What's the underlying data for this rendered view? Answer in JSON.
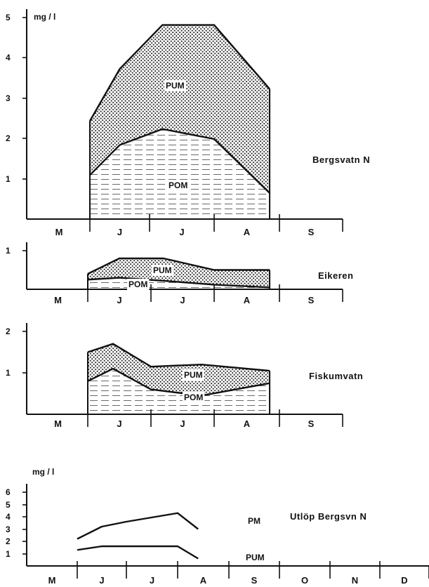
{
  "chart_data": [
    {
      "type": "area",
      "title": "Bergsvatn N",
      "ylabel": "mg / l",
      "ylim": [
        0,
        5
      ],
      "yticks": [
        "1",
        "2",
        "3",
        "4",
        "5"
      ],
      "categories": [
        "M",
        "J",
        "J",
        "A",
        "S"
      ],
      "x": [
        1.0,
        1.5,
        2.2,
        3.0,
        3.85
      ],
      "series": [
        {
          "name": "PUM",
          "values": [
            1.1,
            1.85,
            2.25,
            2.0,
            0.65
          ],
          "fill": "hatch"
        },
        {
          "name": "POM",
          "values": [
            2.45,
            3.75,
            4.85,
            4.85,
            3.25
          ],
          "fill": "dots"
        }
      ],
      "grid": false
    },
    {
      "type": "area",
      "title": "Eikeren",
      "ylabel": "",
      "ylim": [
        0,
        1.2
      ],
      "yticks": [
        "1"
      ],
      "categories": [
        "M",
        "J",
        "J",
        "A",
        "S"
      ],
      "x": [
        1.0,
        1.5,
        2.2,
        3.0,
        3.85
      ],
      "series": [
        {
          "name": "PUM",
          "values": [
            0.25,
            0.3,
            0.22,
            0.12,
            0.05
          ],
          "fill": "hatch"
        },
        {
          "name": "POM",
          "values": [
            0.4,
            0.8,
            0.8,
            0.5,
            0.5
          ],
          "fill": "dots"
        }
      ],
      "grid": false
    },
    {
      "type": "area",
      "title": "Fiskumvatn",
      "ylabel": "",
      "ylim": [
        0,
        2.2
      ],
      "yticks": [
        "1",
        "2"
      ],
      "categories": [
        "M",
        "J",
        "J",
        "A",
        "S"
      ],
      "x": [
        1.0,
        1.4,
        2.0,
        2.8,
        3.85
      ],
      "series": [
        {
          "name": "PUM",
          "values": [
            0.8,
            1.1,
            0.6,
            0.45,
            0.75
          ],
          "fill": "hatch"
        },
        {
          "name": "POM",
          "values": [
            1.5,
            1.7,
            1.15,
            1.2,
            1.05
          ],
          "fill": "dots"
        }
      ],
      "grid": false
    },
    {
      "type": "line",
      "title": "Utlöp Bergsvn N",
      "ylabel": "mg / l",
      "ylim": [
        0,
        6
      ],
      "yticks": [
        "1",
        "2",
        "3",
        "4",
        "5",
        "6"
      ],
      "categories": [
        "M",
        "J",
        "J",
        "A",
        "S",
        "O",
        "N",
        "D"
      ],
      "x": [
        1.0,
        1.5,
        2.0,
        3.0,
        3.4
      ],
      "series": [
        {
          "name": "PM",
          "values": [
            2.2,
            3.2,
            3.6,
            4.3,
            3.0
          ]
        },
        {
          "name": "PUM",
          "values": [
            1.3,
            1.6,
            1.6,
            1.6,
            0.6
          ]
        }
      ],
      "grid": false
    }
  ],
  "colors": {
    "ink": "#111111",
    "dots": "#222222",
    "paper": "#ffffff"
  }
}
